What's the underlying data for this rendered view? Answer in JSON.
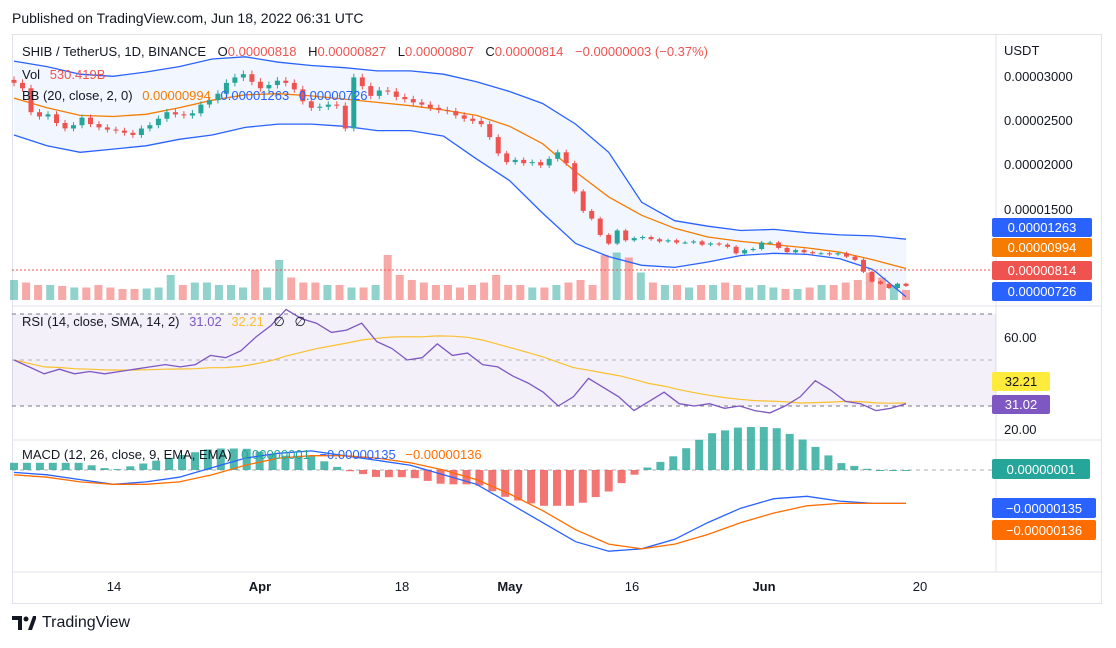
{
  "header": {
    "published": "Published on TradingView.com, Jun 18, 2022 06:31 UTC"
  },
  "legend": {
    "symbol": "SHIB / TetherUS, 1D, BINANCE",
    "o_label": "O",
    "o_value": "0.00000818",
    "h_label": "H",
    "h_value": "0.00000827",
    "l_label": "L",
    "l_value": "0.00000807",
    "c_label": "C",
    "c_value": "0.00000814",
    "change": "−0.00000003 (−0.37%)",
    "vol_label": "Vol",
    "vol_value": "530.419B",
    "bb_label": "BB (20, close, 2, 0)",
    "bb_basis": "0.00000994",
    "bb_upper": "0.00001263",
    "bb_lower": "0.00000726"
  },
  "rsi_legend": {
    "label": "RSI (14, close, SMA, 14, 2)",
    "rsi": "31.02",
    "sma": "32.21",
    "v1": "∅",
    "v2": "∅"
  },
  "macd_legend": {
    "label": "MACD (12, 26, close, 9, EMA, EMA)",
    "hist": "0.00000001",
    "macd": "−0.00000135",
    "signal": "−0.00000136"
  },
  "price_axis": {
    "currency": "USDT",
    "ticks": [
      "0.00003000",
      "0.00002500",
      "0.00002000",
      "0.00001500"
    ],
    "badges": [
      {
        "label": "0.00001263",
        "color": "#2962ff",
        "text_color": "#ffffff"
      },
      {
        "label": "0.00000994",
        "color": "#f57c00",
        "text_color": "#ffffff"
      },
      {
        "label": "0.00000814",
        "color": "#ef5350",
        "text_color": "#ffffff"
      },
      {
        "label": "0.00000726",
        "color": "#2962ff",
        "text_color": "#ffffff"
      }
    ]
  },
  "rsi_axis": {
    "ticks": [
      "60.00",
      "20.00"
    ],
    "badges": [
      {
        "label": "32.21",
        "color": "#ffeb3b",
        "text_color": "#131722"
      },
      {
        "label": "31.02",
        "color": "#7e57c2",
        "text_color": "#ffffff"
      }
    ]
  },
  "macd_axis": {
    "badges": [
      {
        "label": "0.00000001",
        "color": "#26a69a",
        "text_color": "#ffffff"
      },
      {
        "label": "−0.00000135",
        "color": "#2962ff",
        "text_color": "#ffffff"
      },
      {
        "label": "−0.00000136",
        "color": "#ff6d00",
        "text_color": "#ffffff"
      }
    ]
  },
  "time_axis": [
    "14",
    "Apr",
    "18",
    "May",
    "16",
    "Jun",
    "20"
  ],
  "footer": {
    "brand": "TradingView"
  },
  "colors": {
    "up": "#26a69a",
    "down": "#ef5350",
    "bb_band": "#2962ff",
    "bb_basis": "#f57c00",
    "rsi": "#7e57c2",
    "rsi_sma": "#ffeb3b",
    "macd": "#2962ff",
    "signal": "#ff6d00"
  },
  "chart_data": {
    "type": "candlestick",
    "title": "SHIB / TetherUS, 1D, BINANCE",
    "currency": "USDT",
    "x_range": [
      "2022-03-10",
      "2022-06-18"
    ],
    "ylim": [
      7e-06,
      3.15e-05
    ],
    "ohlc_close_path": [
      2.7e-05,
      2.65e-05,
      2.43e-05,
      2.39e-05,
      2.41e-05,
      2.33e-05,
      2.28e-05,
      2.31e-05,
      2.38e-05,
      2.32e-05,
      2.29e-05,
      2.27e-05,
      2.26e-05,
      2.24e-05,
      2.22e-05,
      2.28e-05,
      2.31e-05,
      2.37e-05,
      2.43e-05,
      2.41e-05,
      2.4e-05,
      2.42e-05,
      2.5e-05,
      2.54e-05,
      2.6e-05,
      2.7e-05,
      2.75e-05,
      2.78e-05,
      2.71e-05,
      2.65e-05,
      2.68e-05,
      2.72e-05,
      2.7e-05,
      2.64e-05,
      2.53e-05,
      2.47e-05,
      2.48e-05,
      2.5e-05,
      2.49e-05,
      2.28e-05,
      2.75e-05,
      2.67e-05,
      2.58e-05,
      2.63e-05,
      2.62e-05,
      2.57e-05,
      2.55e-05,
      2.52e-05,
      2.5e-05,
      2.47e-05,
      2.45e-05,
      2.44e-05,
      2.4e-05,
      2.37e-05,
      2.35e-05,
      2.32e-05,
      2.2e-05,
      2.05e-05,
      1.97e-05,
      1.99e-05,
      1.96e-05,
      1.97e-05,
      1.94e-05,
      2e-05,
      2.06e-05,
      1.96e-05,
      1.7e-05,
      1.52e-05,
      1.45e-05,
      1.3e-05,
      1.22e-05,
      1.34e-05,
      1.25e-05,
      1.27e-05,
      1.28e-05,
      1.26e-05,
      1.24e-05,
      1.25e-05,
      1.23e-05,
      1.23e-05,
      1.24e-05,
      1.21e-05,
      1.22e-05,
      1.21e-05,
      1.19e-05,
      1.13e-05,
      1.16e-05,
      1.17e-05,
      1.23e-05,
      1.23e-05,
      1.18e-05,
      1.14e-05,
      1.16e-05,
      1.14e-05,
      1.13e-05,
      1.13e-05,
      1.12e-05,
      1.13e-05,
      1.1e-05,
      1.07e-05,
      9.6e-06,
      8.7e-06,
      8.5e-06,
      8.1e-06,
      8.5e-06,
      8.3e-06
    ],
    "bb_upper_path": [
      2.9e-05,
      2.85e-05,
      2.78e-05,
      2.76e-05,
      2.8e-05,
      2.85e-05,
      2.92e-05,
      2.94e-05,
      2.89e-05,
      2.86e-05,
      2.84e-05,
      2.81e-05,
      2.81e-05,
      2.78e-05,
      2.71e-05,
      2.62e-05,
      2.51e-05,
      2.32e-05,
      2.06e-05,
      1.6e-05,
      1.43e-05,
      1.38e-05,
      1.34e-05,
      1.35e-05,
      1.32e-05,
      1.3e-05,
      1.29e-05,
      1.26e-05
    ],
    "bb_basis_path": [
      2.56e-05,
      2.47e-05,
      2.4e-05,
      2.39e-05,
      2.41e-05,
      2.47e-05,
      2.54e-05,
      2.59e-05,
      2.6e-05,
      2.58e-05,
      2.55e-05,
      2.52e-05,
      2.49e-05,
      2.45e-05,
      2.4e-05,
      2.3e-05,
      2.14e-05,
      1.88e-05,
      1.65e-05,
      1.48e-05,
      1.36e-05,
      1.28e-05,
      1.24e-05,
      1.21e-05,
      1.18e-05,
      1.14e-05,
      1.07e-05,
      9.9e-06
    ],
    "bb_lower_path": [
      2.22e-05,
      2.12e-05,
      2.06e-05,
      2.09e-05,
      2.12e-05,
      2.18e-05,
      2.22e-05,
      2.29e-05,
      2.32e-05,
      2.32e-05,
      2.3e-05,
      2.26e-05,
      2.26e-05,
      2.21e-05,
      2e-05,
      1.8e-05,
      1.5e-05,
      1.22e-05,
      1.1e-05,
      1.02e-05,
      1e-05,
      1.05e-05,
      1.11e-05,
      1.13e-05,
      1.12e-05,
      1.08e-05,
      9.8e-06,
      7.3e-06
    ],
    "volume_path": [
      0.4,
      0.35,
      0.3,
      0.3,
      0.28,
      0.25,
      0.25,
      0.3,
      0.25,
      0.22,
      0.22,
      0.23,
      0.25,
      0.5,
      0.3,
      0.35,
      0.35,
      0.3,
      0.3,
      0.25,
      0.6,
      0.25,
      0.8,
      0.45,
      0.35,
      0.35,
      0.3,
      0.3,
      0.25,
      0.25,
      0.3,
      0.9,
      0.5,
      0.4,
      0.35,
      0.3,
      0.3,
      0.25,
      0.3,
      0.35,
      0.5,
      0.3,
      0.3,
      0.25,
      0.25,
      0.3,
      0.35,
      0.4,
      0.3,
      0.9,
      0.95,
      0.85,
      0.55,
      0.35,
      0.3,
      0.3,
      0.25,
      0.3,
      0.3,
      0.35,
      0.3,
      0.25,
      0.3,
      0.25,
      0.22,
      0.22,
      0.25,
      0.3,
      0.3,
      0.35,
      0.4,
      0.55,
      0.45,
      0.3,
      0.2
    ],
    "rsi": {
      "ylim": [
        20,
        80
      ],
      "ticks": [
        60,
        20
      ],
      "rsi_last": 31.02,
      "sma_last": 32.21,
      "rsi_path": [
        50,
        47,
        44,
        46,
        44,
        45,
        44,
        45,
        46,
        47,
        48,
        47,
        48,
        52,
        51,
        54,
        60,
        65,
        72,
        68,
        66,
        62,
        63,
        66,
        58,
        55,
        50,
        51,
        57,
        52,
        53,
        48,
        47,
        43,
        40,
        36,
        30,
        34,
        42,
        38,
        34,
        28,
        32,
        36,
        31,
        30,
        31,
        29,
        30,
        28,
        27,
        30,
        34,
        41,
        37,
        32,
        31,
        28,
        29,
        31
      ]
    },
    "macd": {
      "last": -1.35e-06,
      "signal_last": -1.36e-06,
      "hist_last": 1e-08,
      "macd_path": [
        -1e-07,
        -2e-07,
        -4e-07,
        -6e-07,
        -5e-07,
        -3e-07,
        1e-07,
        5e-07,
        7e-07,
        8e-07,
        6e-07,
        4e-07,
        2e-07,
        -2e-07,
        -6e-07,
        -1.4e-06,
        -2.2e-06,
        -3e-06,
        -3.4e-06,
        -3.3e-06,
        -2.9e-06,
        -2.2e-06,
        -1.6e-06,
        -1.2e-06,
        -1.1e-06,
        -1.3e-06,
        -1.4e-06,
        -1.4e-06
      ],
      "signal_path": [
        -2e-07,
        -3e-07,
        -5e-07,
        -6e-07,
        -6e-07,
        -5e-07,
        -2e-07,
        2e-07,
        5e-07,
        6e-07,
        6e-07,
        5e-07,
        3e-07,
        0.0,
        -4e-07,
        -1e-06,
        -1.7e-06,
        -2.5e-06,
        -3.1e-06,
        -3.3e-06,
        -3.1e-06,
        -2.7e-06,
        -2.2e-06,
        -1.8e-06,
        -1.5e-06,
        -1.4e-06,
        -1.4e-06,
        -1.4e-06
      ]
    }
  }
}
